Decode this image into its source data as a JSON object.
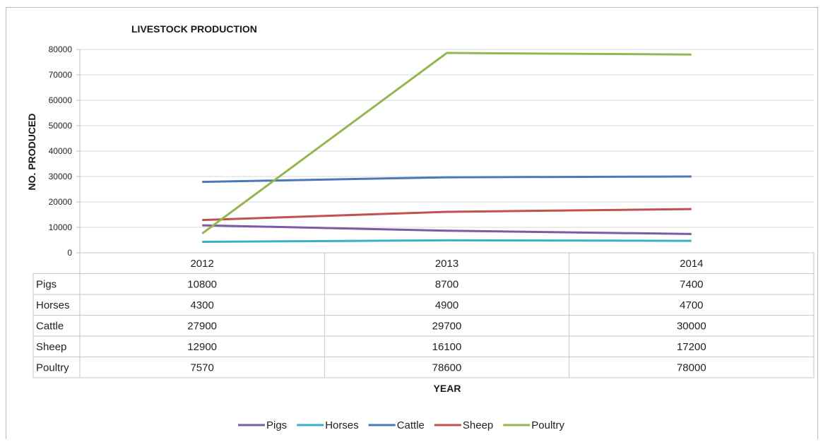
{
  "chart_data": {
    "type": "line",
    "title": "LIVESTOCK PRODUCTION",
    "xlabel": "YEAR",
    "ylabel": "NO. PRODUCED",
    "categories": [
      "2012",
      "2013",
      "2014"
    ],
    "ylim": [
      0,
      80000
    ],
    "yticks": [
      "80000",
      "70000",
      "60000",
      "50000",
      "40000",
      "30000",
      "20000",
      "10000",
      "0"
    ],
    "grid": true,
    "legend_position": "bottom",
    "series": [
      {
        "name": "Pigs",
        "values": [
          10800,
          8700,
          7400
        ],
        "display": [
          "10800",
          "8700",
          "7400"
        ],
        "color": "#7b5aa6"
      },
      {
        "name": "Horses",
        "values": [
          4300,
          4900,
          4700
        ],
        "display": [
          "4300",
          "4900",
          "4700"
        ],
        "color": "#39b3c4"
      },
      {
        "name": "Cattle",
        "values": [
          27900,
          29700,
          30000
        ],
        "display": [
          "27900",
          "29700",
          "30000"
        ],
        "color": "#4a78b8"
      },
      {
        "name": "Sheep",
        "values": [
          12900,
          16100,
          17200
        ],
        "display": [
          "12900",
          "16100",
          "17200"
        ],
        "color": "#c2504d"
      },
      {
        "name": "Poultry",
        "values": [
          7570,
          78600,
          78000
        ],
        "display": [
          "7570",
          "78600",
          "78000"
        ],
        "color": "#93b64f"
      }
    ]
  }
}
